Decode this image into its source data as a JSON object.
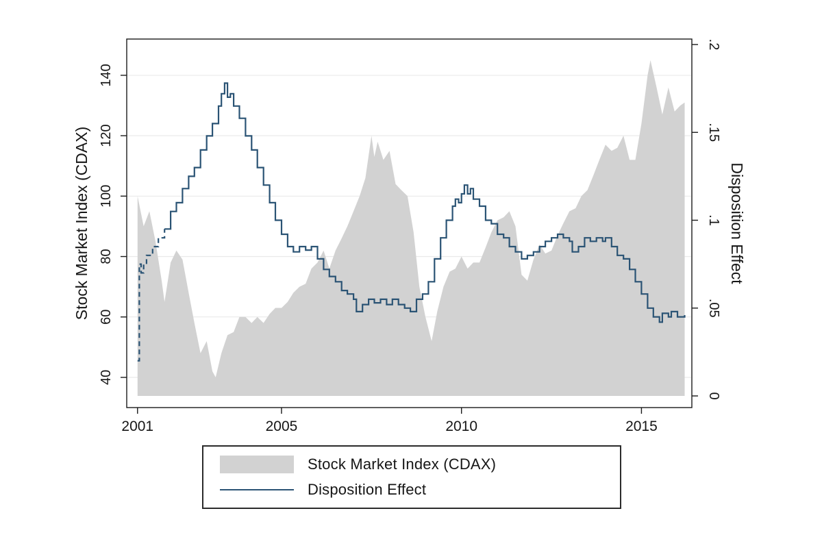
{
  "figure": {
    "legend": {
      "items": [
        {
          "label": "Stock Market Index (CDAX)",
          "swatch": "area",
          "color": "#d2d2d2"
        },
        {
          "label": "Disposition Effect",
          "swatch": "line",
          "color": "#2a5374"
        }
      ]
    }
  },
  "chart_data": {
    "type": "area+line",
    "title": "",
    "x_ticks": [
      2001,
      2005,
      2010,
      2015
    ],
    "x_range": [
      2000.7,
      2016.4
    ],
    "grid": true,
    "legend_position": "bottom",
    "left_axis": {
      "label": "Stock Market Index (CDAX)",
      "ticks": [
        40,
        60,
        80,
        100,
        120,
        140
      ],
      "tick_labels": [
        "40",
        "60",
        "80",
        "100",
        "120",
        "140"
      ],
      "range": [
        30,
        152
      ]
    },
    "right_axis": {
      "label": "Disposition Effect",
      "ticks": [
        0,
        0.05,
        0.1,
        0.15,
        0.2
      ],
      "tick_labels": [
        "0",
        ".05",
        ".1",
        ".15",
        ".2"
      ],
      "range": [
        0,
        0.2
      ]
    },
    "series": [
      {
        "name": "Stock Market Index (CDAX)",
        "type": "area",
        "axis": "left",
        "color": "#d2d2d2",
        "points": [
          [
            2001.0,
            100
          ],
          [
            2001.17,
            90
          ],
          [
            2001.33,
            95
          ],
          [
            2001.5,
            85
          ],
          [
            2001.67,
            72
          ],
          [
            2001.75,
            65
          ],
          [
            2001.92,
            78
          ],
          [
            2002.08,
            82
          ],
          [
            2002.25,
            79
          ],
          [
            2002.42,
            68
          ],
          [
            2002.58,
            58
          ],
          [
            2002.75,
            48
          ],
          [
            2002.92,
            52
          ],
          [
            2003.08,
            42
          ],
          [
            2003.17,
            40
          ],
          [
            2003.33,
            48
          ],
          [
            2003.5,
            54
          ],
          [
            2003.67,
            55
          ],
          [
            2003.83,
            60
          ],
          [
            2004.0,
            60
          ],
          [
            2004.17,
            58
          ],
          [
            2004.33,
            60
          ],
          [
            2004.5,
            58
          ],
          [
            2004.67,
            61
          ],
          [
            2004.83,
            63
          ],
          [
            2005.0,
            63
          ],
          [
            2005.17,
            65
          ],
          [
            2005.33,
            68
          ],
          [
            2005.5,
            70
          ],
          [
            2005.67,
            71
          ],
          [
            2005.83,
            76
          ],
          [
            2006.0,
            78
          ],
          [
            2006.17,
            82
          ],
          [
            2006.33,
            76
          ],
          [
            2006.5,
            82
          ],
          [
            2006.67,
            86
          ],
          [
            2006.83,
            90
          ],
          [
            2007.0,
            95
          ],
          [
            2007.17,
            100
          ],
          [
            2007.33,
            106
          ],
          [
            2007.5,
            120
          ],
          [
            2007.58,
            113
          ],
          [
            2007.67,
            118
          ],
          [
            2007.83,
            112
          ],
          [
            2008.0,
            115
          ],
          [
            2008.17,
            104
          ],
          [
            2008.33,
            102
          ],
          [
            2008.5,
            100
          ],
          [
            2008.67,
            88
          ],
          [
            2008.83,
            70
          ],
          [
            2009.0,
            60
          ],
          [
            2009.17,
            52
          ],
          [
            2009.33,
            62
          ],
          [
            2009.5,
            70
          ],
          [
            2009.67,
            75
          ],
          [
            2009.83,
            76
          ],
          [
            2010.0,
            80
          ],
          [
            2010.17,
            76
          ],
          [
            2010.33,
            78
          ],
          [
            2010.5,
            78
          ],
          [
            2010.67,
            83
          ],
          [
            2010.83,
            88
          ],
          [
            2011.0,
            92
          ],
          [
            2011.17,
            93
          ],
          [
            2011.33,
            95
          ],
          [
            2011.5,
            90
          ],
          [
            2011.67,
            74
          ],
          [
            2011.83,
            72
          ],
          [
            2012.0,
            79
          ],
          [
            2012.17,
            84
          ],
          [
            2012.33,
            81
          ],
          [
            2012.5,
            82
          ],
          [
            2012.67,
            87
          ],
          [
            2012.83,
            91
          ],
          [
            2013.0,
            95
          ],
          [
            2013.17,
            96
          ],
          [
            2013.33,
            100
          ],
          [
            2013.5,
            102
          ],
          [
            2013.67,
            107
          ],
          [
            2013.83,
            112
          ],
          [
            2014.0,
            117
          ],
          [
            2014.17,
            115
          ],
          [
            2014.33,
            116
          ],
          [
            2014.5,
            120
          ],
          [
            2014.67,
            112
          ],
          [
            2014.83,
            112
          ],
          [
            2015.0,
            124
          ],
          [
            2015.17,
            140
          ],
          [
            2015.25,
            145
          ],
          [
            2015.42,
            136
          ],
          [
            2015.58,
            127
          ],
          [
            2015.75,
            136
          ],
          [
            2015.92,
            128
          ],
          [
            2016.08,
            130
          ],
          [
            2016.2,
            131
          ]
        ]
      },
      {
        "name": "Disposition Effect",
        "type": "step-line",
        "axis": "right",
        "color": "#2a5374",
        "dashed_until": 2001.9,
        "points": [
          [
            2001.0,
            0.02
          ],
          [
            2001.05,
            0.075
          ],
          [
            2001.1,
            0.07
          ],
          [
            2001.17,
            0.075
          ],
          [
            2001.25,
            0.08
          ],
          [
            2001.42,
            0.085
          ],
          [
            2001.58,
            0.09
          ],
          [
            2001.75,
            0.095
          ],
          [
            2001.92,
            0.105
          ],
          [
            2002.08,
            0.11
          ],
          [
            2002.25,
            0.118
          ],
          [
            2002.42,
            0.125
          ],
          [
            2002.58,
            0.13
          ],
          [
            2002.75,
            0.14
          ],
          [
            2002.92,
            0.148
          ],
          [
            2003.08,
            0.155
          ],
          [
            2003.25,
            0.165
          ],
          [
            2003.33,
            0.172
          ],
          [
            2003.42,
            0.178
          ],
          [
            2003.5,
            0.17
          ],
          [
            2003.58,
            0.172
          ],
          [
            2003.67,
            0.165
          ],
          [
            2003.83,
            0.158
          ],
          [
            2004.0,
            0.148
          ],
          [
            2004.17,
            0.14
          ],
          [
            2004.33,
            0.13
          ],
          [
            2004.5,
            0.12
          ],
          [
            2004.67,
            0.11
          ],
          [
            2004.83,
            0.1
          ],
          [
            2005.0,
            0.092
          ],
          [
            2005.17,
            0.085
          ],
          [
            2005.33,
            0.082
          ],
          [
            2005.5,
            0.085
          ],
          [
            2005.67,
            0.083
          ],
          [
            2005.83,
            0.085
          ],
          [
            2006.0,
            0.078
          ],
          [
            2006.17,
            0.072
          ],
          [
            2006.33,
            0.068
          ],
          [
            2006.5,
            0.065
          ],
          [
            2006.67,
            0.06
          ],
          [
            2006.83,
            0.058
          ],
          [
            2007.0,
            0.055
          ],
          [
            2007.08,
            0.048
          ],
          [
            2007.25,
            0.052
          ],
          [
            2007.42,
            0.055
          ],
          [
            2007.58,
            0.053
          ],
          [
            2007.75,
            0.055
          ],
          [
            2007.92,
            0.052
          ],
          [
            2008.08,
            0.055
          ],
          [
            2008.25,
            0.052
          ],
          [
            2008.42,
            0.05
          ],
          [
            2008.58,
            0.048
          ],
          [
            2008.75,
            0.055
          ],
          [
            2008.92,
            0.058
          ],
          [
            2009.08,
            0.065
          ],
          [
            2009.25,
            0.078
          ],
          [
            2009.42,
            0.09
          ],
          [
            2009.58,
            0.1
          ],
          [
            2009.75,
            0.108
          ],
          [
            2009.83,
            0.112
          ],
          [
            2009.92,
            0.11
          ],
          [
            2010.0,
            0.115
          ],
          [
            2010.08,
            0.12
          ],
          [
            2010.17,
            0.115
          ],
          [
            2010.25,
            0.118
          ],
          [
            2010.33,
            0.112
          ],
          [
            2010.5,
            0.108
          ],
          [
            2010.67,
            0.1
          ],
          [
            2010.83,
            0.098
          ],
          [
            2011.0,
            0.092
          ],
          [
            2011.17,
            0.09
          ],
          [
            2011.33,
            0.085
          ],
          [
            2011.5,
            0.082
          ],
          [
            2011.67,
            0.078
          ],
          [
            2011.83,
            0.08
          ],
          [
            2012.0,
            0.082
          ],
          [
            2012.17,
            0.085
          ],
          [
            2012.33,
            0.088
          ],
          [
            2012.5,
            0.09
          ],
          [
            2012.67,
            0.092
          ],
          [
            2012.83,
            0.09
          ],
          [
            2013.0,
            0.088
          ],
          [
            2013.08,
            0.082
          ],
          [
            2013.25,
            0.085
          ],
          [
            2013.42,
            0.09
          ],
          [
            2013.58,
            0.088
          ],
          [
            2013.75,
            0.09
          ],
          [
            2013.92,
            0.088
          ],
          [
            2014.0,
            0.09
          ],
          [
            2014.17,
            0.085
          ],
          [
            2014.33,
            0.08
          ],
          [
            2014.5,
            0.078
          ],
          [
            2014.67,
            0.072
          ],
          [
            2014.83,
            0.065
          ],
          [
            2015.0,
            0.058
          ],
          [
            2015.17,
            0.05
          ],
          [
            2015.33,
            0.045
          ],
          [
            2015.5,
            0.042
          ],
          [
            2015.58,
            0.047
          ],
          [
            2015.75,
            0.045
          ],
          [
            2015.83,
            0.048
          ],
          [
            2016.0,
            0.045
          ],
          [
            2016.2,
            0.046
          ]
        ]
      }
    ]
  }
}
